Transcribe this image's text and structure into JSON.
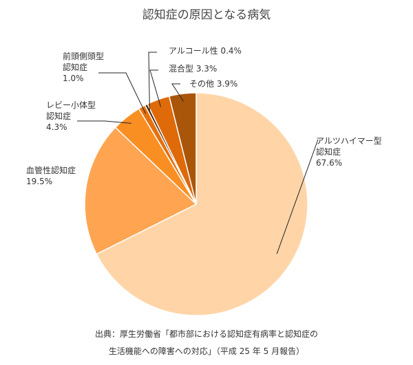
{
  "chart_data": {
    "type": "pie",
    "title": "認知症の原因となる病気",
    "slices": [
      {
        "lines": [
          "アルツハイマー型",
          "認知症"
        ],
        "value": 67.6,
        "value_label": "67.6%",
        "color": "#FFD5A8"
      },
      {
        "lines": [
          "血管性認知症"
        ],
        "value": 19.5,
        "value_label": "19.5%",
        "color": "#FFA552"
      },
      {
        "lines": [
          "レビー小体型",
          "認知症"
        ],
        "value": 4.3,
        "value_label": "4.3%",
        "color": "#F98F22"
      },
      {
        "lines": [
          "前頭側頭型",
          "認知症"
        ],
        "value": 1.0,
        "value_label": "1.0%",
        "color": "#E6700C"
      },
      {
        "lines": [
          "アルコール性"
        ],
        "value": 0.4,
        "value_label": "0.4%",
        "color": "#4A2606"
      },
      {
        "lines": [
          "混合型"
        ],
        "value": 3.3,
        "value_label": "3.3%",
        "color": "#DE6A0A"
      },
      {
        "lines": [
          "その他"
        ],
        "value": 3.9,
        "value_label": "3.9%",
        "color": "#A9560B"
      }
    ],
    "source_lines": [
      "出典：厚生労働省「都市部における認知症有病率と認知症の",
      "生活機能への障害への対応」（平成 25 年 5 月報告）"
    ]
  }
}
